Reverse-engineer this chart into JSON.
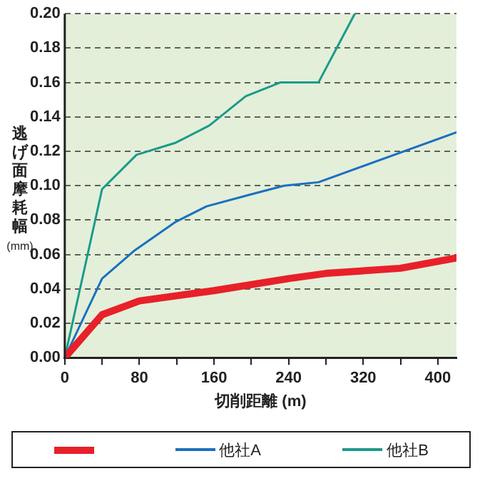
{
  "chart_data": {
    "type": "line",
    "xlabel": "切削距離 (m)",
    "ylabel": "逃げ面摩耗幅 (mm)",
    "xlim": [
      0,
      420
    ],
    "xticks": [
      0,
      {
        "value": 40,
        "label": null
      },
      80,
      {
        "value": 120,
        "label": null
      },
      160,
      {
        "value": 200,
        "label": null
      },
      240,
      {
        "value": 280,
        "label": null
      },
      320,
      {
        "value": 360,
        "label": null
      },
      400
    ],
    "ylim": [
      0,
      0.2
    ],
    "yticks": [
      {
        "value": 0,
        "label": "0.00"
      },
      {
        "value": 0.02,
        "label": "0.02"
      },
      {
        "value": 0.04,
        "label": "0.04"
      },
      {
        "value": 0.06,
        "label": "0.06"
      },
      {
        "value": 0.08,
        "label": "0.08"
      },
      {
        "value": 0.1,
        "label": "0.10"
      },
      {
        "value": 0.12,
        "label": "0.12"
      },
      {
        "value": 0.14,
        "label": "0.14"
      },
      {
        "value": 0.16,
        "label": "0.16"
      },
      {
        "value": 0.18,
        "label": "0.18"
      },
      {
        "value": 0.2,
        "label": "0.20"
      }
    ],
    "grid": "y",
    "legend": "bottom",
    "marker": "none",
    "line_style": "solid",
    "series": [
      {
        "color": "#e8202a",
        "x": [
          0,
          40,
          80,
          160,
          240,
          280,
          360,
          420
        ],
        "values": [
          0,
          0.025,
          0.033,
          0.039,
          0.046,
          0.049,
          0.052,
          0.058
        ]
      },
      {
        "name": "他社A",
        "color": "#1a70c0",
        "x": [
          0,
          40,
          74,
          119,
          152,
          200,
          235,
          272,
          420
        ],
        "values": [
          0,
          0.046,
          0.062,
          0.079,
          0.088,
          0.095,
          0.1,
          0.102,
          0.131
        ]
      },
      {
        "name": "他社B",
        "color": "#1a9a8a",
        "x": [
          0,
          40,
          77,
          119,
          155,
          194,
          231,
          272,
          311
        ],
        "values": [
          0,
          0.098,
          0.118,
          0.125,
          0.135,
          0.152,
          0.16,
          0.16,
          0.2
        ]
      }
    ]
  }
}
